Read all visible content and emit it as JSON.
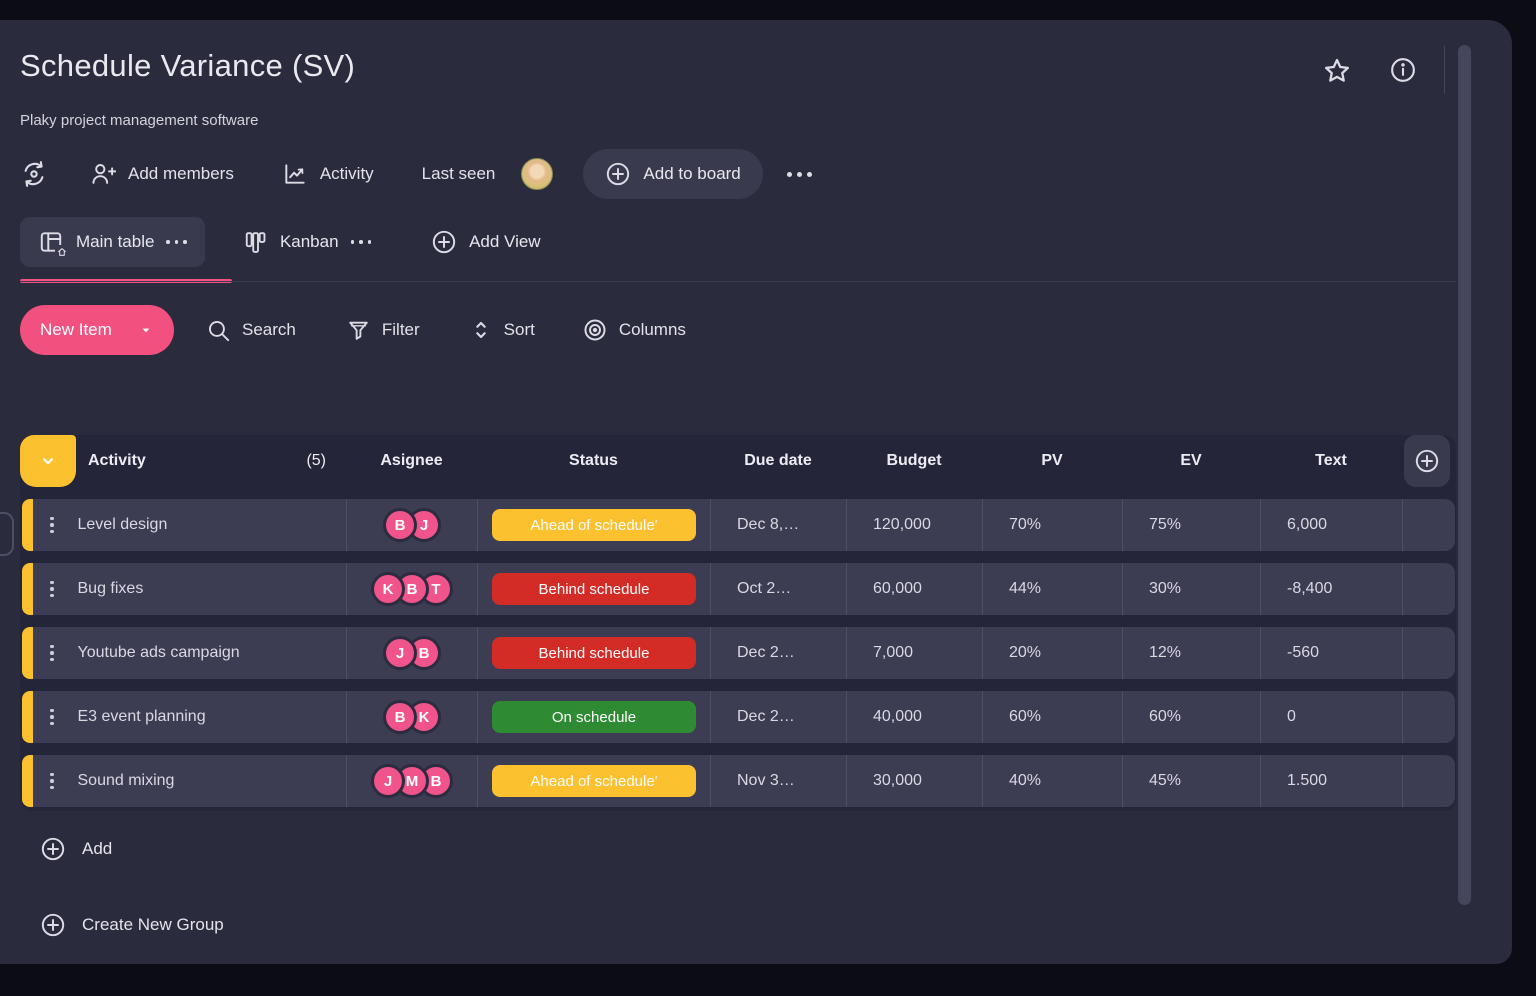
{
  "window": {
    "title": "Schedule Variance (SV)",
    "subtitle": "Plaky project management software"
  },
  "toolbar": {
    "add_members": "Add members",
    "activity": "Activity",
    "last_seen": "Last seen",
    "add_to_board": "Add to board"
  },
  "tabs": {
    "main_table": "Main table",
    "kanban": "Kanban",
    "add_view": "Add View"
  },
  "actions": {
    "new_item": "New Item",
    "search": "Search",
    "filter": "Filter",
    "sort": "Sort",
    "columns": "Columns"
  },
  "table": {
    "columns": {
      "activity": "Activity",
      "count": "(5)",
      "asignee": "Asignee",
      "status": "Status",
      "due_date": "Due date",
      "budget": "Budget",
      "pv": "PV",
      "ev": "EV",
      "text": "Text"
    },
    "rows": [
      {
        "name": "Level design",
        "assignees": [
          "B",
          "J"
        ],
        "status": "Ahead of schedule'",
        "status_color": "#fcc12f",
        "due": "Dec 8,…",
        "budget": "120,000",
        "pv": "70%",
        "ev": "75%",
        "text": "6,000"
      },
      {
        "name": "Bug fixes",
        "assignees": [
          "K",
          "B",
          "T"
        ],
        "status": "Behind schedule",
        "status_color": "#d32b25",
        "due": "Oct 2…",
        "budget": "60,000",
        "pv": "44%",
        "ev": "30%",
        "text": "-8,400"
      },
      {
        "name": "Youtube ads campaign",
        "assignees": [
          "J",
          "B"
        ],
        "status": "Behind schedule",
        "status_color": "#d32b25",
        "due": "Dec 2…",
        "budget": "7,000",
        "pv": "20%",
        "ev": "12%",
        "text": "-560"
      },
      {
        "name": "E3 event planning",
        "assignees": [
          "B",
          "K"
        ],
        "status": "On schedule",
        "status_color": "#2e8b33",
        "due": "Dec 2…",
        "budget": "40,000",
        "pv": "60%",
        "ev": "60%",
        "text": "0"
      },
      {
        "name": "Sound mixing",
        "assignees": [
          "J",
          "M",
          "B"
        ],
        "status": "Ahead of schedule'",
        "status_color": "#fcc12f",
        "due": "Nov 3…",
        "budget": "30,000",
        "pv": "40%",
        "ev": "45%",
        "text": "1.500"
      }
    ]
  },
  "footer": {
    "add": "Add",
    "create_new_group": "Create New Group"
  },
  "colors": {
    "accent_pink": "#f2517f",
    "group_yellow": "#fcc12f",
    "status_red": "#d32b25",
    "status_green": "#2e8b33",
    "status_yellow": "#fcc12f",
    "avatar_pink": "#f0548a",
    "panel_bg": "#2b2b3e",
    "row_bg": "#3c3c53"
  }
}
